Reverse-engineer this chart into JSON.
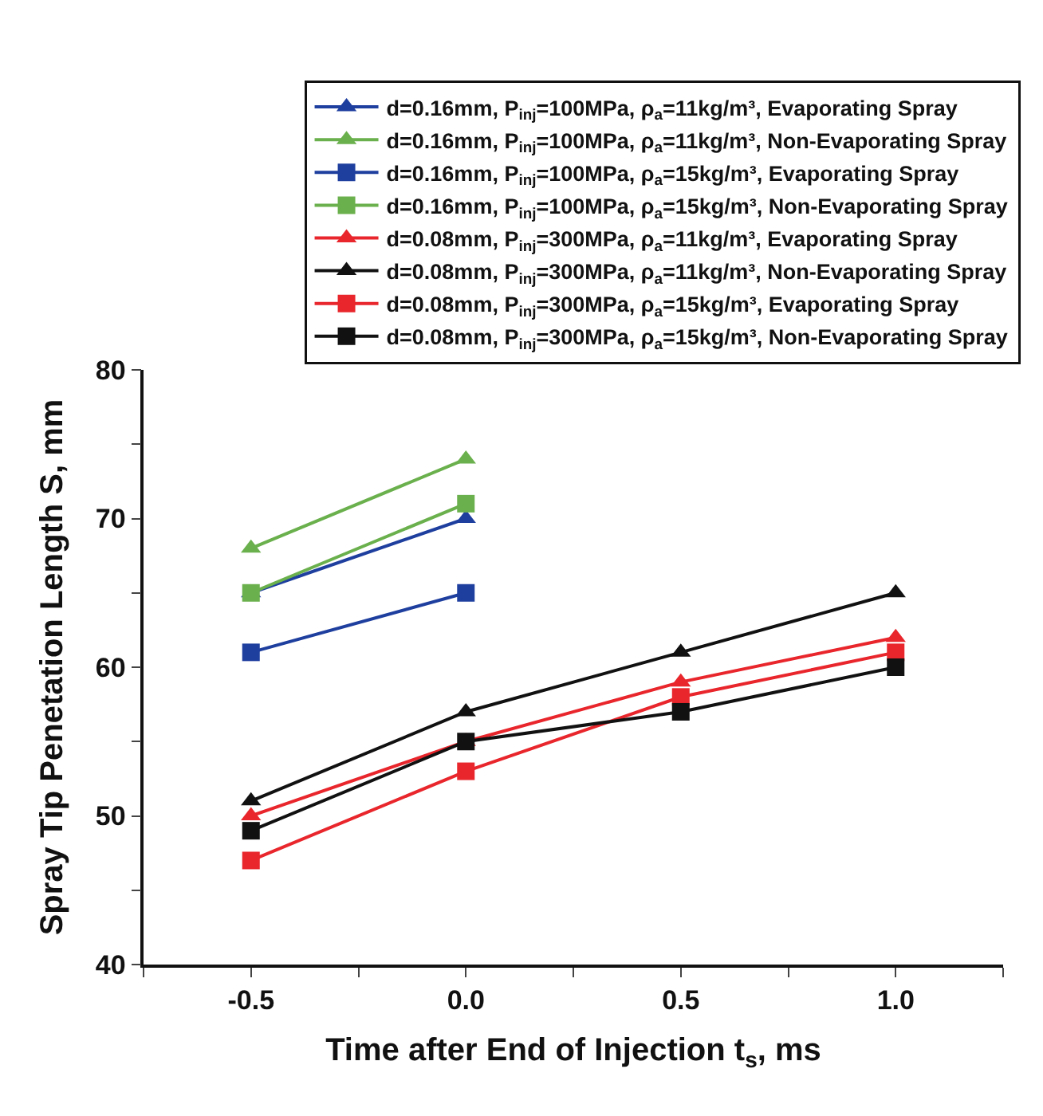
{
  "chart_data": {
    "type": "line",
    "xlabel": "Time after End of Injection t$_{s}$, ms",
    "ylabel": "Spray Tip Penetation Length S, mm",
    "xlim": [
      -0.75,
      1.25
    ],
    "xticks": [
      {
        "value": -0.75,
        "label": null
      },
      -0.5,
      {
        "value": -0.25,
        "label": null
      },
      {
        "value": 0,
        "label": "0.0"
      },
      {
        "value": 0.25,
        "label": null
      },
      0.5,
      {
        "value": 0.75,
        "label": null
      },
      {
        "value": 1,
        "label": "1.0"
      },
      {
        "value": 1.25,
        "label": null
      }
    ],
    "ylim": [
      40,
      80
    ],
    "yticks": [
      40,
      {
        "value": 45,
        "label": null
      },
      50,
      {
        "value": 55,
        "label": null
      },
      60,
      {
        "value": 65,
        "label": null
      },
      70,
      {
        "value": 75,
        "label": null
      },
      80
    ],
    "legend": "top",
    "line_style": "solid",
    "x": [
      -0.5,
      0,
      0.5,
      1
    ],
    "series": [
      {
        "name": "d=0.16mm, P$_{inj}$=100MPa, ρ$_{a}$=11kg/m³, Evaporating Spray",
        "color": "#1f3f9f",
        "marker": "triangle",
        "values": [
          65,
          70,
          null,
          null
        ]
      },
      {
        "name": "d=0.16mm, P$_{inj}$=100MPa, ρ$_{a}$=11kg/m³, Non-Evaporating Spray",
        "color": "#6ab04c",
        "marker": "triangle",
        "values": [
          68,
          74,
          null,
          null
        ]
      },
      {
        "name": "d=0.16mm, P$_{inj}$=100MPa, ρ$_{a}$=15kg/m³, Evaporating Spray",
        "color": "#1f3f9f",
        "marker": "square",
        "values": [
          61,
          65,
          null,
          null
        ]
      },
      {
        "name": "d=0.16mm, P$_{inj}$=100MPa, ρ$_{a}$=15kg/m³, Non-Evaporating Spray",
        "color": "#6ab04c",
        "marker": "square",
        "values": [
          65,
          71,
          null,
          null
        ]
      },
      {
        "name": "d=0.08mm, P$_{inj}$=300MPa, ρ$_{a}$=11kg/m³, Evaporating Spray",
        "color": "#e8262c",
        "marker": "triangle",
        "values": [
          50,
          55,
          59,
          62
        ]
      },
      {
        "name": "d=0.08mm, P$_{inj}$=300MPa, ρ$_{a}$=11kg/m³, Non-Evaporating Spray",
        "color": "#111111",
        "marker": "triangle",
        "values": [
          51,
          57,
          61,
          65
        ]
      },
      {
        "name": "d=0.08mm, P$_{inj}$=300MPa, ρ$_{a}$=15kg/m³, Evaporating Spray",
        "color": "#e8262c",
        "marker": "square",
        "values": [
          47,
          53,
          58,
          61
        ]
      },
      {
        "name": "d=0.08mm, P$_{inj}$=300MPa, ρ$_{a}$=15kg/m³, Non-Evaporating Spray",
        "color": "#111111",
        "marker": "square",
        "values": [
          49,
          55,
          57,
          60
        ]
      }
    ]
  }
}
